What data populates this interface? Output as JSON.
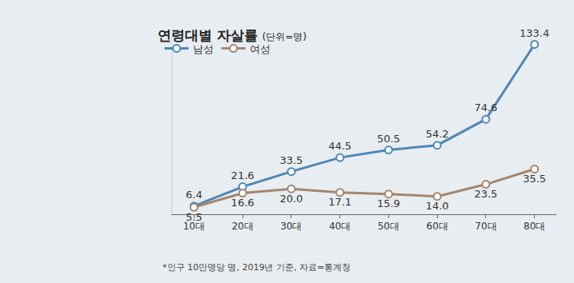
{
  "chart_data": {
    "type": "line",
    "title": "연령대별 자살률",
    "subtitle": "(단위=명)",
    "categories": [
      "10대",
      "20대",
      "30대",
      "40대",
      "50대",
      "60대",
      "70대",
      "80대"
    ],
    "series": [
      {
        "name": "남성",
        "color": "#4f86b5",
        "values": [
          6.4,
          21.6,
          33.5,
          44.5,
          50.5,
          54.2,
          74.6,
          133.4
        ]
      },
      {
        "name": "여성",
        "color": "#a3866f",
        "values": [
          5.5,
          16.6,
          20.0,
          17.1,
          15.9,
          14.0,
          23.5,
          35.5
        ],
        "value_labels": [
          "5.5",
          "16.6",
          "20.0",
          "17.1",
          "15.9",
          "14.0",
          "23.5",
          "35.5"
        ]
      }
    ],
    "ylim": [
      0,
      140
    ],
    "yticks": [],
    "grid": false,
    "legend": "top-left",
    "data_labels": true,
    "tick_labels": "x",
    "marker": "circle",
    "annotations": [
      "*인구 10만명당 명, 2019년 기준, 자료=통계청"
    ]
  }
}
